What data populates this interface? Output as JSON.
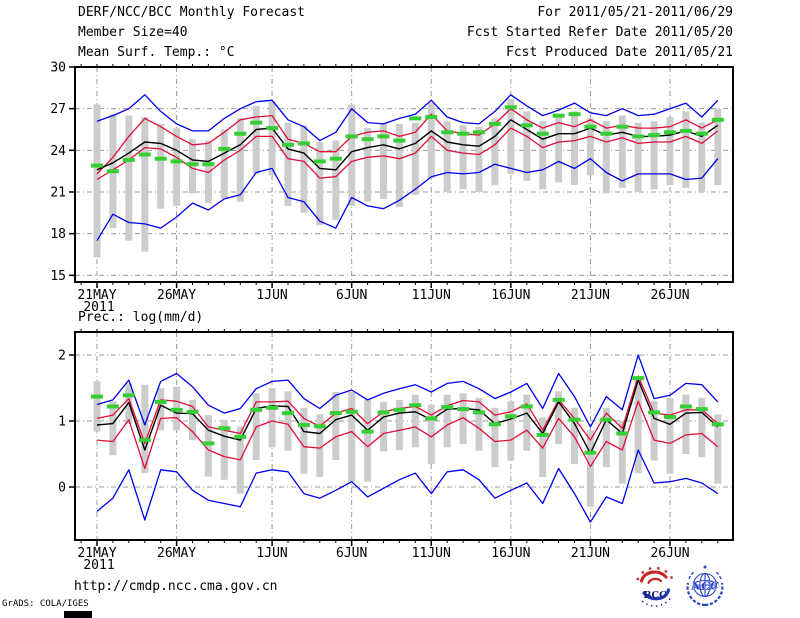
{
  "header": {
    "left": [
      "DERF/NCC/BCC Monthly Forecast",
      "Member Size=40"
    ],
    "right": [
      "For 2011/05/21-2011/06/29",
      "Fcst Started Refer Date 2011/05/20",
      "Fcst Produced Date 2011/05/21"
    ]
  },
  "footer": {
    "url": "http://cmdp.ncc.cma.gov.cn",
    "credit": "GrADS: COLA/IGES"
  },
  "logos": {
    "bcc": "BCC",
    "ncc": "NCC"
  },
  "colors": {
    "line_blue": "#0000f0",
    "line_red": "#e01038",
    "line_black": "#000000",
    "obs_green": "#35cf35",
    "spread_gray": "#cccccc",
    "grid_gray": "#999999"
  },
  "chart_data": [
    {
      "type": "line",
      "title": "Mean Surf. Temp.: °C",
      "x_start_date": "21MAY2011",
      "x_year_label": "2011",
      "x_ticks": [
        {
          "day": 0,
          "label": "21MAY"
        },
        {
          "day": 5,
          "label": "26MAY"
        },
        {
          "day": 11,
          "label": "1JUN"
        },
        {
          "day": 16,
          "label": "6JUN"
        },
        {
          "day": 21,
          "label": "11JUN"
        },
        {
          "day": 26,
          "label": "16JUN"
        },
        {
          "day": 31,
          "label": "21JUN"
        },
        {
          "day": 36,
          "label": "26JUN"
        }
      ],
      "y_ticks": [
        30,
        27,
        24,
        21,
        18,
        15
      ],
      "ylim": [
        14.5,
        30
      ],
      "grid": true,
      "series": [
        {
          "name": "ensemble-max",
          "color": "blue",
          "values": [
            26.1,
            26.5,
            27.0,
            28.0,
            26.8,
            25.9,
            25.4,
            25.4,
            26.3,
            27.0,
            27.5,
            27.6,
            26.2,
            25.7,
            24.7,
            25.3,
            27.0,
            26.0,
            25.9,
            26.3,
            26.6,
            27.6,
            26.4,
            26.0,
            25.9,
            26.8,
            28.0,
            27.2,
            26.5,
            26.9,
            27.4,
            26.7,
            26.5,
            27.0,
            26.5,
            26.6,
            27.0,
            27.4,
            26.4,
            27.6
          ]
        },
        {
          "name": "mean-plus-sd",
          "color": "red",
          "values": [
            22.3,
            23.5,
            25.0,
            26.3,
            25.7,
            25.0,
            24.4,
            24.5,
            25.3,
            26.2,
            26.4,
            26.5,
            24.8,
            24.5,
            23.9,
            23.9,
            25.0,
            25.3,
            25.4,
            25.0,
            25.3,
            26.6,
            25.4,
            25.2,
            25.1,
            25.9,
            27.0,
            26.2,
            25.6,
            26.0,
            25.7,
            26.2,
            25.6,
            25.8,
            25.6,
            25.6,
            25.7,
            26.2,
            25.6,
            26.2
          ]
        },
        {
          "name": "ensemble-mean",
          "color": "black",
          "values": [
            22.6,
            23.1,
            23.8,
            24.6,
            24.5,
            24.0,
            23.3,
            23.2,
            23.8,
            24.4,
            25.5,
            25.6,
            24.1,
            23.8,
            22.7,
            22.6,
            23.9,
            24.2,
            24.4,
            24.1,
            24.5,
            25.4,
            24.6,
            24.4,
            24.3,
            25.0,
            26.2,
            25.5,
            24.8,
            25.2,
            25.2,
            25.6,
            25.1,
            25.3,
            25.0,
            25.0,
            25.1,
            25.4,
            25.0,
            25.8
          ]
        },
        {
          "name": "mean-minus-sd",
          "color": "red",
          "values": [
            21.9,
            22.6,
            23.3,
            24.2,
            24.1,
            23.5,
            22.7,
            22.4,
            23.3,
            24.0,
            25.0,
            25.0,
            23.4,
            23.2,
            22.0,
            22.1,
            23.2,
            23.5,
            23.6,
            23.4,
            23.8,
            25.0,
            24.0,
            23.8,
            23.7,
            24.4,
            25.6,
            25.0,
            24.2,
            24.6,
            24.7,
            25.0,
            24.6,
            24.9,
            24.5,
            24.6,
            24.6,
            25.0,
            24.5,
            25.4
          ]
        },
        {
          "name": "ensemble-min",
          "color": "blue",
          "values": [
            17.5,
            19.4,
            18.8,
            18.7,
            18.4,
            19.2,
            20.2,
            19.7,
            20.5,
            20.8,
            22.4,
            22.7,
            20.6,
            20.3,
            18.9,
            18.4,
            20.6,
            20.0,
            19.8,
            20.4,
            21.2,
            22.1,
            22.4,
            22.3,
            22.4,
            23.0,
            22.7,
            22.4,
            22.6,
            23.2,
            22.7,
            23.4,
            22.4,
            21.8,
            22.3,
            22.3,
            22.3,
            21.9,
            22.0,
            23.4
          ]
        }
      ],
      "green_dashes": {
        "name": "observation",
        "values": [
          22.9,
          22.5,
          23.3,
          23.7,
          23.4,
          23.2,
          23.0,
          23.0,
          24.1,
          25.2,
          26.0,
          25.6,
          24.4,
          24.5,
          23.2,
          23.4,
          25.0,
          24.8,
          25.0,
          24.7,
          26.3,
          26.4,
          25.3,
          25.2,
          25.3,
          25.9,
          27.1,
          25.8,
          25.2,
          26.5,
          26.6,
          25.7,
          25.2,
          25.7,
          25.0,
          25.1,
          25.3,
          25.4,
          25.2,
          26.2
        ]
      },
      "bars": {
        "name": "member-spread",
        "top": [
          27.3,
          26.6,
          26.5,
          26.4,
          25.9,
          25.6,
          24.8,
          24.7,
          25.5,
          26.3,
          27.2,
          27.5,
          26.0,
          25.8,
          24.6,
          24.7,
          27.3,
          25.6,
          25.9,
          25.9,
          26.0,
          27.4,
          26.1,
          25.8,
          25.7,
          26.3,
          27.7,
          26.8,
          26.1,
          26.4,
          26.8,
          26.3,
          26.1,
          26.5,
          26.0,
          26.1,
          26.4,
          26.8,
          26.0,
          27.0
        ],
        "bottom": [
          16.3,
          18.4,
          17.5,
          16.7,
          19.8,
          20.0,
          20.9,
          20.2,
          20.5,
          20.3,
          22.3,
          22.2,
          20.0,
          19.5,
          18.6,
          19.0,
          20.0,
          20.3,
          20.5,
          19.9,
          20.8,
          22.0,
          21.0,
          21.2,
          21.0,
          21.5,
          22.3,
          21.8,
          21.2,
          21.7,
          21.5,
          22.2,
          20.9,
          21.3,
          21.0,
          21.2,
          21.5,
          21.3,
          21.0,
          21.5
        ]
      }
    },
    {
      "type": "line",
      "title": "Prec.: log(mm/d)",
      "x_start_date": "21MAY2011",
      "x_year_label": "2011",
      "x_ticks": [
        {
          "day": 0,
          "label": "21MAY"
        },
        {
          "day": 5,
          "label": "26MAY"
        },
        {
          "day": 11,
          "label": "1JUN"
        },
        {
          "day": 16,
          "label": "6JUN"
        },
        {
          "day": 21,
          "label": "11JUN"
        },
        {
          "day": 26,
          "label": "16JUN"
        },
        {
          "day": 31,
          "label": "21JUN"
        },
        {
          "day": 36,
          "label": "26JUN"
        }
      ],
      "y_ticks": [
        2,
        1,
        0
      ],
      "ylim": [
        -0.8,
        2.35
      ],
      "grid": true,
      "series": [
        {
          "name": "ensemble-max",
          "color": "blue",
          "values": [
            1.25,
            1.32,
            1.62,
            0.94,
            1.6,
            1.72,
            1.52,
            1.24,
            1.12,
            1.19,
            1.49,
            1.6,
            1.62,
            1.34,
            1.19,
            1.39,
            1.47,
            1.32,
            1.42,
            1.49,
            1.55,
            1.44,
            1.57,
            1.6,
            1.49,
            1.34,
            1.44,
            1.57,
            1.19,
            1.72,
            1.37,
            0.91,
            1.37,
            1.17,
            2.0,
            1.34,
            1.39,
            1.57,
            1.55,
            1.29
          ]
        },
        {
          "name": "mean-plus-sd",
          "color": "red",
          "values": [
            1.04,
            1.09,
            1.34,
            0.66,
            1.32,
            1.3,
            1.22,
            0.91,
            0.86,
            0.81,
            1.29,
            1.29,
            1.3,
            1.04,
            0.92,
            1.12,
            1.19,
            0.96,
            1.14,
            1.19,
            1.22,
            1.09,
            1.23,
            1.31,
            1.29,
            1.09,
            1.14,
            1.26,
            0.86,
            1.32,
            1.04,
            0.71,
            1.12,
            0.89,
            1.68,
            1.12,
            1.09,
            1.17,
            1.17,
            0.96
          ]
        },
        {
          "name": "ensemble-mean",
          "color": "black",
          "values": [
            0.94,
            0.96,
            1.28,
            0.56,
            1.24,
            1.12,
            1.11,
            0.86,
            0.77,
            0.71,
            1.19,
            1.23,
            1.22,
            0.84,
            0.81,
            1.02,
            1.09,
            0.86,
            1.06,
            1.12,
            1.14,
            1.02,
            1.18,
            1.19,
            1.17,
            0.96,
            1.03,
            1.12,
            0.81,
            1.29,
            0.96,
            0.51,
            1.02,
            0.81,
            1.62,
            1.04,
            0.95,
            1.12,
            1.13,
            0.91
          ]
        },
        {
          "name": "mean-minus-sd",
          "color": "red",
          "values": [
            0.71,
            0.69,
            1.02,
            0.28,
            1.04,
            1.05,
            0.84,
            0.56,
            0.46,
            0.41,
            0.91,
            1.0,
            0.95,
            0.61,
            0.59,
            0.76,
            0.84,
            0.61,
            0.81,
            0.86,
            0.91,
            0.76,
            0.94,
            1.05,
            0.89,
            0.69,
            0.71,
            0.86,
            0.59,
            1.04,
            0.76,
            0.31,
            0.69,
            0.56,
            1.3,
            0.71,
            0.66,
            0.79,
            0.81,
            0.61
          ]
        },
        {
          "name": "ensemble-min",
          "color": "blue",
          "values": [
            -0.37,
            -0.17,
            0.26,
            -0.5,
            0.26,
            0.23,
            -0.05,
            -0.2,
            -0.25,
            -0.3,
            0.21,
            0.26,
            0.23,
            -0.1,
            -0.17,
            -0.05,
            0.08,
            -0.15,
            -0.02,
            0.11,
            0.21,
            -0.1,
            0.23,
            0.26,
            0.11,
            -0.17,
            -0.05,
            0.06,
            -0.25,
            0.28,
            -0.1,
            -0.53,
            -0.15,
            -0.25,
            0.56,
            0.06,
            0.08,
            0.13,
            0.06,
            -0.1
          ]
        }
      ],
      "green_dashes": {
        "name": "observation",
        "values": [
          1.37,
          1.22,
          1.39,
          0.71,
          1.29,
          1.17,
          1.14,
          0.66,
          0.89,
          0.76,
          1.17,
          1.2,
          1.12,
          0.94,
          0.92,
          1.12,
          1.14,
          0.84,
          1.13,
          1.17,
          1.24,
          1.04,
          1.21,
          1.18,
          1.13,
          0.95,
          1.07,
          1.22,
          0.79,
          1.32,
          1.02,
          0.52,
          1.02,
          0.81,
          1.65,
          1.13,
          1.06,
          1.22,
          1.18,
          0.95
        ]
      },
      "bars": {
        "name": "member-spread",
        "top": [
          1.6,
          1.3,
          1.57,
          1.55,
          1.5,
          1.52,
          1.32,
          1.09,
          1.02,
          0.91,
          1.42,
          1.5,
          1.45,
          1.2,
          1.1,
          1.44,
          1.44,
          1.32,
          1.29,
          1.32,
          1.4,
          1.25,
          1.4,
          1.42,
          1.35,
          1.2,
          1.3,
          1.4,
          1.05,
          1.45,
          1.2,
          0.86,
          1.2,
          1.0,
          1.67,
          1.3,
          1.35,
          1.4,
          1.35,
          1.1
        ],
        "bottom": [
          0.84,
          0.48,
          0.96,
          0.21,
          0.86,
          0.86,
          0.71,
          0.16,
          0.11,
          -0.1,
          0.41,
          0.6,
          0.55,
          0.2,
          0.15,
          0.41,
          0.08,
          0.08,
          0.54,
          0.56,
          0.6,
          0.35,
          0.6,
          0.65,
          0.55,
          0.3,
          0.4,
          0.55,
          0.15,
          0.65,
          0.35,
          -0.3,
          0.3,
          0.05,
          0.21,
          0.4,
          0.2,
          0.5,
          0.45,
          0.05
        ]
      }
    }
  ]
}
